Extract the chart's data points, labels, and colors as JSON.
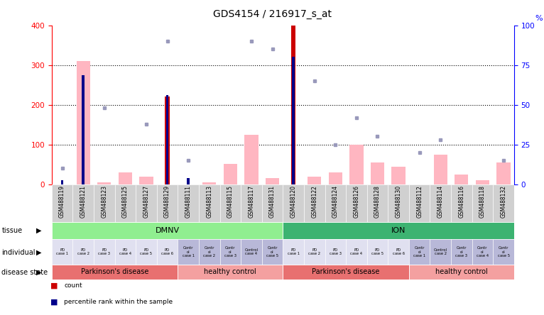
{
  "title": "GDS4154 / 216917_s_at",
  "samples": [
    "GSM488119",
    "GSM488121",
    "GSM488123",
    "GSM488125",
    "GSM488127",
    "GSM488129",
    "GSM488111",
    "GSM488113",
    "GSM488115",
    "GSM488117",
    "GSM488131",
    "GSM488120",
    "GSM488122",
    "GSM488124",
    "GSM488126",
    "GSM488128",
    "GSM488130",
    "GSM488112",
    "GSM488114",
    "GSM488116",
    "GSM488118",
    "GSM488132"
  ],
  "count_values": [
    0,
    0,
    0,
    0,
    0,
    220,
    0,
    0,
    0,
    0,
    0,
    400,
    0,
    0,
    0,
    0,
    0,
    0,
    0,
    0,
    0,
    0
  ],
  "percentile_values": [
    10,
    275,
    0,
    0,
    0,
    225,
    15,
    0,
    0,
    0,
    0,
    320,
    0,
    0,
    0,
    0,
    0,
    0,
    0,
    0,
    0,
    0
  ],
  "value_absent": [
    0,
    310,
    5,
    30,
    20,
    0,
    0,
    5,
    52,
    125,
    15,
    0,
    20,
    30,
    100,
    55,
    45,
    0,
    75,
    25,
    10,
    55
  ],
  "rank_absent": [
    10,
    0,
    48,
    0,
    38,
    90,
    15,
    0,
    0,
    90,
    85,
    0,
    65,
    25,
    42,
    30,
    0,
    20,
    28,
    0,
    0,
    15
  ],
  "tissue_groups": [
    {
      "label": "DMNV",
      "start": 0,
      "end": 10,
      "color": "#90EE90"
    },
    {
      "label": "ION",
      "start": 11,
      "end": 21,
      "color": "#3CB371"
    }
  ],
  "individual_labels": [
    "PD\ncase 1",
    "PD\ncase 2",
    "PD\ncase 3",
    "PD\ncase 4",
    "PD\ncase 5",
    "PD\ncase 6",
    "Contr\nol\ncase 1",
    "Contr\nol\ncase 2",
    "Contr\nol\ncase 3",
    "Control\ncase 4",
    "Contr\nol\ncase 5",
    "PD\ncase 1",
    "PD\ncase 2",
    "PD\ncase 3",
    "PD\ncase 4",
    "PD\ncase 5",
    "PD\ncase 6",
    "Contr\nol\ncase 1",
    "Control\ncase 2",
    "Contr\nol\ncase 3",
    "Contr\nol\ncase 4",
    "Contr\nol\ncase 5"
  ],
  "individual_colors": [
    "#E0E0F0",
    "#E0E0F0",
    "#E0E0F0",
    "#E0E0F0",
    "#E0E0F0",
    "#E0E0F0",
    "#B8B8D8",
    "#B8B8D8",
    "#B8B8D8",
    "#B8B8D8",
    "#B8B8D8",
    "#E0E0F0",
    "#E0E0F0",
    "#E0E0F0",
    "#E0E0F0",
    "#E0E0F0",
    "#E0E0F0",
    "#B8B8D8",
    "#B8B8D8",
    "#B8B8D8",
    "#B8B8D8",
    "#B8B8D8"
  ],
  "disease_state_groups": [
    {
      "label": "Parkinson's disease",
      "start": 0,
      "end": 5,
      "color": "#E87070"
    },
    {
      "label": "healthy control",
      "start": 6,
      "end": 10,
      "color": "#F4A0A0"
    },
    {
      "label": "Parkinson's disease",
      "start": 11,
      "end": 16,
      "color": "#E87070"
    },
    {
      "label": "healthy control",
      "start": 17,
      "end": 21,
      "color": "#F4A0A0"
    }
  ],
  "ylim_left": [
    0,
    400
  ],
  "ylim_right": [
    0,
    100
  ],
  "yticks_left": [
    0,
    100,
    200,
    300,
    400
  ],
  "yticks_right": [
    0,
    25,
    50,
    75,
    100
  ],
  "count_color": "#CC0000",
  "percentile_color": "#00008B",
  "value_absent_color": "#FFB6C1",
  "rank_absent_color": "#9999BB",
  "background_color": "#FFFFFF",
  "sample_label_bg": "#D0D0D0"
}
